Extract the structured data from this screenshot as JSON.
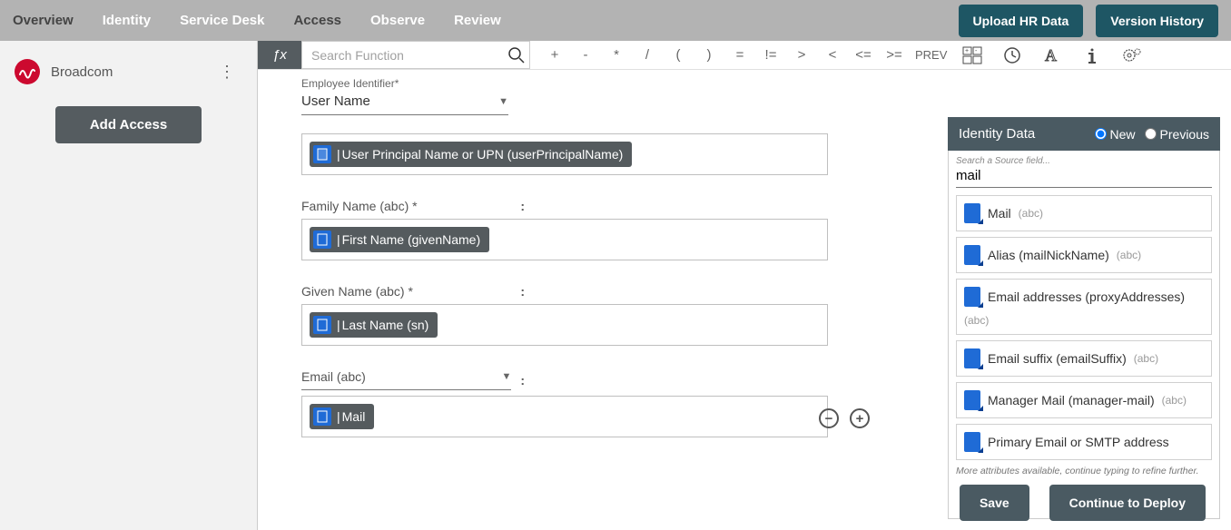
{
  "nav": {
    "overview": "Overview",
    "identity": "Identity",
    "servicedesk": "Service Desk",
    "access": "Access",
    "observe": "Observe",
    "review": "Review"
  },
  "top_buttons": {
    "upload": "Upload HR Data",
    "version": "Version History"
  },
  "sidebar": {
    "org": "Broadcom",
    "add_access": "Add Access"
  },
  "formula": {
    "fx": "ƒx",
    "search_placeholder": "Search Function",
    "ops": [
      "+",
      "-",
      "*",
      "/",
      "(",
      ")",
      "=",
      "!=",
      ">",
      "<",
      "<=",
      ">="
    ],
    "prev": "PREV"
  },
  "form": {
    "emp_id_label": "Employee Identifier*",
    "emp_id_value": "User Name",
    "upn_token": "User Principal Name or UPN (userPrincipalName)",
    "family_label": "Family Name (abc) *",
    "given_token": "First Name (givenName)",
    "given_label": "Given Name (abc) *",
    "last_token": "Last Name (sn)",
    "email_label": "Email (abc)",
    "mail_token": "Mail"
  },
  "panel": {
    "title": "Identity Data",
    "new": "New",
    "previous": "Previous",
    "search_label": "Search a Source field...",
    "search_value": "mail",
    "fields": [
      {
        "name": "Mail",
        "type": "(abc)"
      },
      {
        "name": "Alias (mailNickName)",
        "type": "(abc)"
      },
      {
        "name": "Email addresses (proxyAddresses)",
        "type": "(abc)"
      },
      {
        "name": "Email suffix (emailSuffix)",
        "type": "(abc)"
      },
      {
        "name": "Manager Mail (manager-mail)",
        "type": "(abc)"
      },
      {
        "name": "Primary Email or SMTP address",
        "type": ""
      }
    ],
    "more": "More attributes available, continue typing to refine further."
  },
  "footer": {
    "save": "Save",
    "deploy": "Continue to Deploy"
  },
  "colors": {
    "brand_red": "#cc092f",
    "top_btn": "#1e5664",
    "token_bg": "#555b5e",
    "panel_head": "#4a5a62",
    "field_icon": "#1f6bd6"
  }
}
